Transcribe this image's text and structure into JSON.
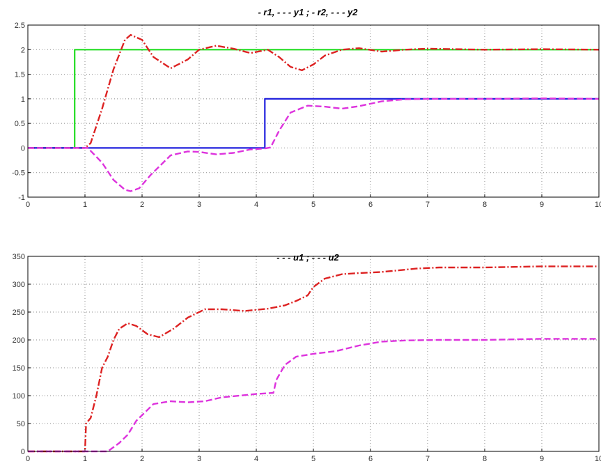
{
  "chart_data": [
    {
      "type": "line",
      "title": "- r1, - - - y1 ; - r2, - - - y2",
      "xlim": [
        0,
        10
      ],
      "ylim": [
        -1,
        2.5
      ],
      "xticks": [
        "0",
        "1",
        "2",
        "3",
        "4",
        "5",
        "6",
        "7",
        "8",
        "9",
        "10"
      ],
      "yticks": [
        "-1",
        "-0.5",
        "0",
        "0.5",
        "1",
        "1.5",
        "2",
        "2.5"
      ],
      "grid": true,
      "series": [
        {
          "name": "r1",
          "color": "#22dd22",
          "style": "solid",
          "step": true,
          "x": [
            0,
            0.82,
            0.82,
            10
          ],
          "y": [
            0,
            0,
            2,
            2
          ]
        },
        {
          "name": "y1",
          "color": "#dd2222",
          "style": "dashdot",
          "x": [
            0,
            1.0,
            1.1,
            1.3,
            1.5,
            1.7,
            1.8,
            2.0,
            2.2,
            2.5,
            2.8,
            3.0,
            3.3,
            3.6,
            3.9,
            4.2,
            4.4,
            4.6,
            4.8,
            5.0,
            5.2,
            5.5,
            5.8,
            6.2,
            6.6,
            7.0,
            8.0,
            9.0,
            10.0
          ],
          "y": [
            0,
            0,
            0.1,
            0.8,
            1.6,
            2.2,
            2.3,
            2.2,
            1.85,
            1.62,
            1.8,
            2.0,
            2.08,
            2.02,
            1.93,
            2.0,
            1.85,
            1.65,
            1.58,
            1.7,
            1.88,
            2.0,
            2.03,
            1.96,
            2.0,
            2.02,
            2.0,
            2.01,
            2.0
          ]
        },
        {
          "name": "r2",
          "color": "#2222dd",
          "style": "solid",
          "step": true,
          "x": [
            0,
            4.15,
            4.15,
            10
          ],
          "y": [
            0,
            0,
            1,
            1
          ]
        },
        {
          "name": "y2",
          "color": "#dd33dd",
          "style": "dashed",
          "x": [
            0,
            1.05,
            1.3,
            1.5,
            1.7,
            1.8,
            1.95,
            2.15,
            2.5,
            2.8,
            3.0,
            3.3,
            3.6,
            3.9,
            4.15,
            4.25,
            4.4,
            4.6,
            4.9,
            5.2,
            5.5,
            5.8,
            6.2,
            6.6,
            7.0,
            8.0,
            9.0,
            10.0
          ],
          "y": [
            0,
            0,
            -0.3,
            -0.65,
            -0.85,
            -0.88,
            -0.82,
            -0.55,
            -0.15,
            -0.07,
            -0.08,
            -0.13,
            -0.1,
            -0.03,
            -0.01,
            0.01,
            0.35,
            0.72,
            0.86,
            0.84,
            0.8,
            0.85,
            0.95,
            0.99,
            1.0,
            1.0,
            1.01,
            1.0
          ]
        }
      ]
    },
    {
      "type": "line",
      "title": "- - - u1 ; - - - u2",
      "xlim": [
        0,
        10
      ],
      "ylim": [
        0,
        350
      ],
      "xticks": [
        "0",
        "1",
        "2",
        "3",
        "4",
        "5",
        "6",
        "7",
        "8",
        "9",
        "10"
      ],
      "yticks": [
        "0",
        "50",
        "100",
        "150",
        "200",
        "250",
        "300",
        "350"
      ],
      "grid": true,
      "series": [
        {
          "name": "u1",
          "color": "#dd2222",
          "style": "dashdot",
          "x": [
            0,
            1.0,
            1.02,
            1.1,
            1.2,
            1.3,
            1.4,
            1.5,
            1.6,
            1.75,
            1.9,
            2.1,
            2.3,
            2.55,
            2.8,
            3.1,
            3.4,
            3.8,
            4.2,
            4.5,
            4.7,
            4.9,
            5.0,
            5.2,
            5.5,
            5.8,
            6.2,
            6.8,
            7.2,
            8.0,
            9.0,
            10.0
          ],
          "y": [
            0,
            0,
            50,
            60,
            100,
            150,
            170,
            200,
            220,
            230,
            225,
            210,
            205,
            220,
            240,
            255,
            255,
            252,
            256,
            262,
            270,
            280,
            295,
            310,
            318,
            320,
            322,
            328,
            330,
            330,
            332,
            332
          ]
        },
        {
          "name": "u2",
          "color": "#dd33dd",
          "style": "dashed",
          "x": [
            0,
            1.0,
            1.4,
            1.6,
            1.75,
            1.9,
            2.05,
            2.2,
            2.5,
            2.8,
            3.1,
            3.4,
            3.7,
            4.0,
            4.3,
            4.35,
            4.5,
            4.7,
            5.0,
            5.4,
            5.8,
            6.2,
            6.6,
            7.2,
            8.0,
            9.0,
            10.0
          ],
          "y": [
            0,
            0,
            0,
            15,
            30,
            55,
            70,
            85,
            90,
            88,
            90,
            97,
            100,
            103,
            105,
            128,
            155,
            170,
            175,
            180,
            190,
            197,
            199,
            200,
            200,
            202,
            202
          ]
        }
      ]
    }
  ]
}
